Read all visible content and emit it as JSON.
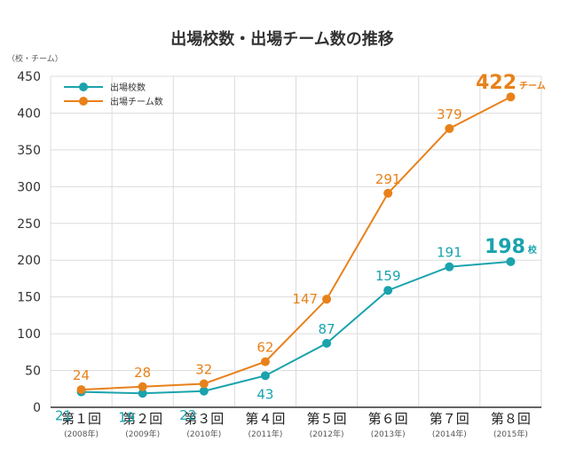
{
  "chart_data": {
    "type": "line",
    "title": "出場校数・出場チーム数の推移",
    "yunit": "（校・チーム）",
    "ylim": [
      0,
      450
    ],
    "yticks": [
      0,
      50,
      100,
      150,
      200,
      250,
      300,
      350,
      400,
      450
    ],
    "grid": true,
    "legend_position": "top-left",
    "categories": [
      {
        "label": "第１回",
        "year": "(2008年)"
      },
      {
        "label": "第２回",
        "year": "(2009年)"
      },
      {
        "label": "第３回",
        "year": "(2010年)"
      },
      {
        "label": "第４回",
        "year": "(2011年)"
      },
      {
        "label": "第５回",
        "year": "(2012年)"
      },
      {
        "label": "第６回",
        "year": "(2013年)"
      },
      {
        "label": "第７回",
        "year": "(2014年)"
      },
      {
        "label": "第８回",
        "year": "(2015年)"
      }
    ],
    "series": [
      {
        "name": "出場校数",
        "color": "#1aa3ad",
        "values": [
          21,
          19,
          22,
          43,
          87,
          159,
          191,
          198
        ],
        "last_unit": "校"
      },
      {
        "name": "出場チーム数",
        "color": "#e8811a",
        "values": [
          24,
          28,
          32,
          62,
          147,
          291,
          379,
          422
        ],
        "last_unit": "チーム"
      }
    ]
  }
}
